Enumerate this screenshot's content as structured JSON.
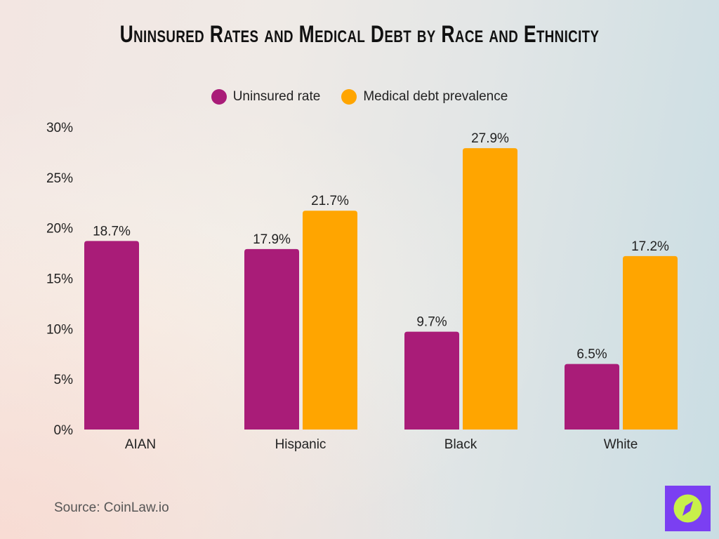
{
  "chart_data": {
    "type": "bar",
    "title": "Uninsured Rates and Medical Debt by Race and Ethnicity",
    "categories": [
      "AIAN",
      "Hispanic",
      "Black",
      "White"
    ],
    "series": [
      {
        "name": "Uninsured rate",
        "values": [
          18.7,
          17.9,
          9.7,
          6.5
        ],
        "color": "#a91c78"
      },
      {
        "name": "Medical debt prevalence",
        "values": [
          null,
          21.7,
          27.9,
          17.2
        ],
        "color": "#ffa500"
      }
    ],
    "ylim": [
      0,
      30
    ],
    "yticks": [
      "0%",
      "5%",
      "10%",
      "15%",
      "20%",
      "25%",
      "30%"
    ],
    "grid": false,
    "legend": "top-center",
    "xlabel": "",
    "ylabel": ""
  },
  "source": "Source: CoinLaw.io",
  "logo": {
    "name": "compass-logo",
    "bg": "#7b3ff2",
    "fg": "#c8f04a"
  }
}
